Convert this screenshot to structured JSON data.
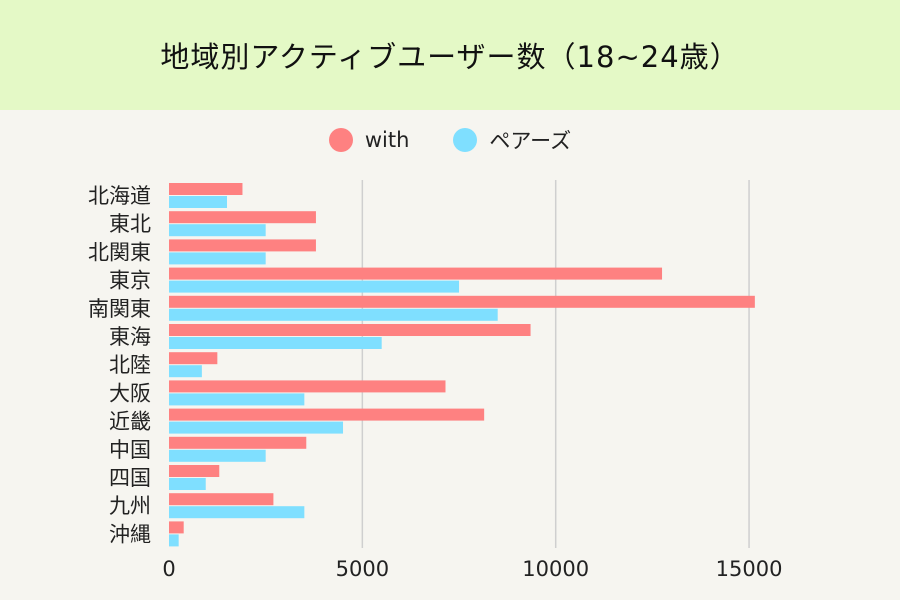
{
  "colors": {
    "background": "#f6f5f0",
    "title_band": "#e4f9c6",
    "with": "#fe8181",
    "pairs": "#7fdfff",
    "grid": "#cfcfcf"
  },
  "chart_data": {
    "type": "bar",
    "orientation": "horizontal",
    "title": "地域別アクティブユーザー数（18~24歳）",
    "categories": [
      "北海道",
      "東北",
      "北関東",
      "東京",
      "南関東",
      "東海",
      "北陸",
      "大阪",
      "近畿",
      "中国",
      "四国",
      "九州",
      "沖縄"
    ],
    "series": [
      {
        "name": "with",
        "color": "#fe8181",
        "values": [
          1900,
          3800,
          3800,
          12750,
          15150,
          9350,
          1250,
          7150,
          8150,
          3550,
          1300,
          2700,
          380
        ]
      },
      {
        "name": "ペアーズ",
        "color": "#7fdfff",
        "values": [
          1500,
          2500,
          2500,
          7500,
          8500,
          5500,
          850,
          3500,
          4500,
          2500,
          950,
          3500,
          250
        ]
      }
    ],
    "xlim": [
      0,
      17500
    ],
    "xticks": [
      0,
      5000,
      10000,
      15000
    ],
    "xtick_labels": [
      "0",
      "5000",
      "10000",
      "15000"
    ],
    "grid": "vertical",
    "legend": "top-center"
  }
}
